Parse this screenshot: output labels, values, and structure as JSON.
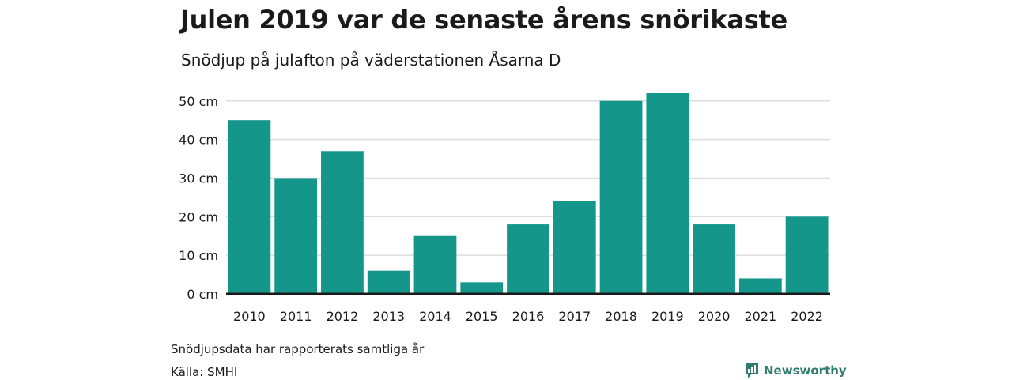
{
  "header": {
    "title": "Julen 2019 var de senaste årens snörikaste",
    "subtitle": "Snödjup på julafton på väderstationen Åsarna D"
  },
  "footer": {
    "note": "Snödjupsdata har rapporterats samtliga år",
    "source": "Källa: SMHI",
    "brand": "Newsworthy",
    "brand_icon": "newsworthy-logo-icon"
  },
  "colors": {
    "bar": "#14968a",
    "grid": "#dddddd",
    "baseline": "#1a1a1a",
    "brand": "#2e7d6f"
  },
  "chart_data": {
    "type": "bar",
    "categories": [
      "2010",
      "2011",
      "2012",
      "2013",
      "2014",
      "2015",
      "2016",
      "2017",
      "2018",
      "2019",
      "2020",
      "2021",
      "2022"
    ],
    "values": [
      45,
      30,
      37,
      6,
      15,
      3,
      18,
      24,
      50,
      52,
      18,
      4,
      20
    ],
    "yticks": [
      0,
      10,
      20,
      30,
      40,
      50
    ],
    "ytick_labels": [
      "0 cm",
      "10 cm",
      "20 cm",
      "30 cm",
      "40 cm",
      "50 cm"
    ],
    "ylim": [
      0,
      52
    ],
    "grid": true,
    "legend": "none"
  }
}
